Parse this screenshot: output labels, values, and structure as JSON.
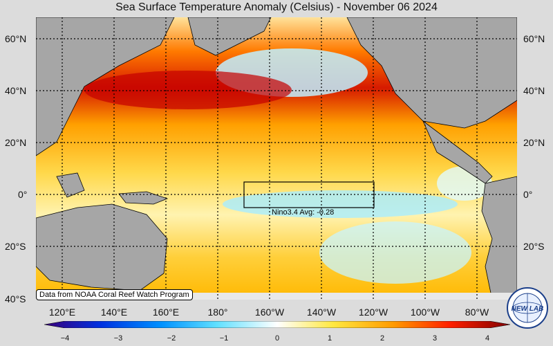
{
  "title": "Sea Surface Temperature Anomaly (Celsius) - November 06 2024",
  "lat_labels": [
    "60°N",
    "40°N",
    "20°N",
    "0°",
    "20°S",
    "40°S"
  ],
  "lon_labels": [
    "120°E",
    "140°E",
    "160°E",
    "180°",
    "160°W",
    "140°W",
    "120°W",
    "100°W",
    "80°W"
  ],
  "nino_label": "Nino3.4 Avg: -0.28",
  "credit": "Data from NOAA Coral Reef Watch Program",
  "colorbar": {
    "min": -4,
    "max": 4,
    "ticks": [
      "−4",
      "−3",
      "−2",
      "−1",
      "0",
      "1",
      "2",
      "3",
      "4"
    ]
  },
  "logo_text": "NEW LAB",
  "colors": {
    "land": "#a6a6a6",
    "hot": "#cc0000",
    "cold": "#00aaff"
  }
}
